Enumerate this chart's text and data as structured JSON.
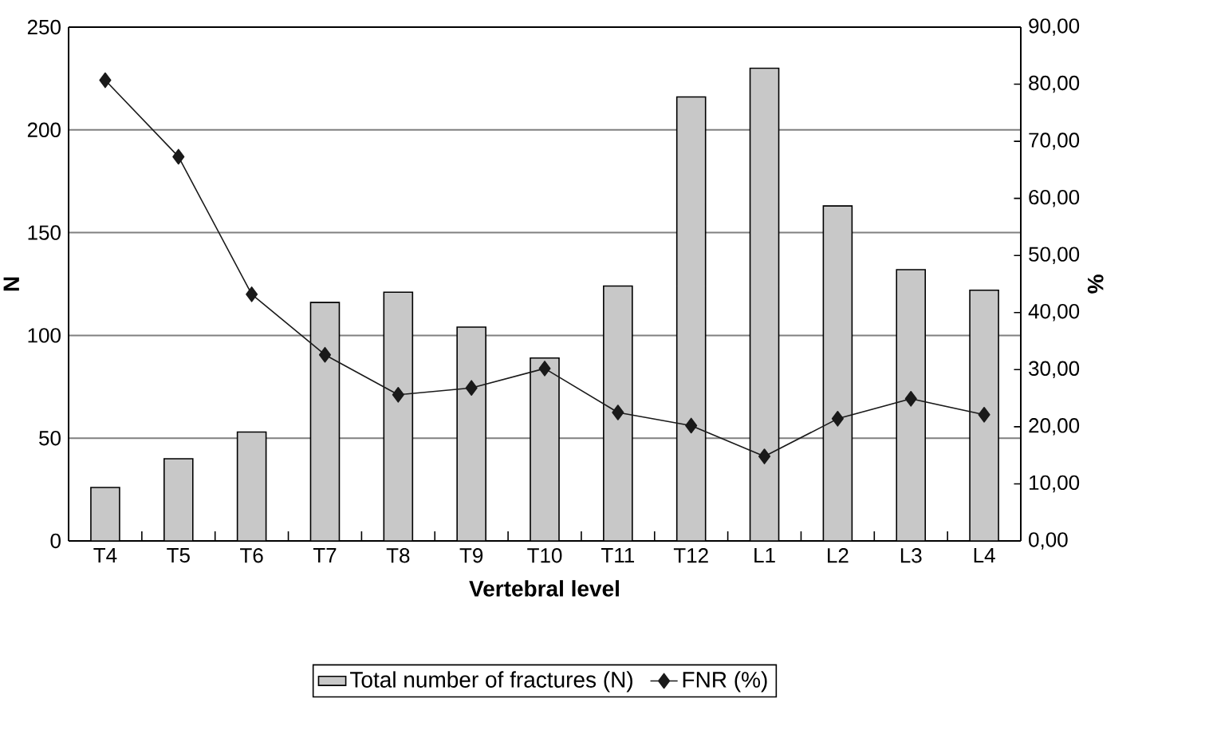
{
  "chart_data": {
    "type": "bar",
    "xlabel": "Vertebral level",
    "ylabel": "N",
    "y2label": "%",
    "categories": [
      "T4",
      "T5",
      "T6",
      "T7",
      "T8",
      "T9",
      "T10",
      "T11",
      "T12",
      "L1",
      "L2",
      "L3",
      "L4"
    ],
    "series": [
      {
        "name": "Total number of fractures (N)",
        "color": "#c8c8c8",
        "values": [
          26,
          40,
          53,
          116,
          121,
          104,
          89,
          124,
          216,
          230,
          163,
          132,
          122
        ]
      },
      {
        "name": "FNR (%)",
        "type": "line",
        "axis": "y2",
        "color": "#1a1a1a",
        "marker": "diamond",
        "values": [
          80.7,
          67.3,
          43.2,
          32.6,
          25.6,
          26.8,
          30.2,
          22.5,
          20.2,
          14.8,
          21.4,
          24.9,
          22.1
        ]
      }
    ],
    "ylim": [
      0,
      250
    ],
    "yticks": [
      0,
      50,
      100,
      150,
      200,
      250
    ],
    "y2lim": [
      0,
      90
    ],
    "y2ticks": [
      {
        "value": 0,
        "label": "0,00"
      },
      {
        "value": 10,
        "label": "10,00"
      },
      {
        "value": 20,
        "label": "20,00"
      },
      {
        "value": 30,
        "label": "30,00"
      },
      {
        "value": 40,
        "label": "40,00"
      },
      {
        "value": 50,
        "label": "50,00"
      },
      {
        "value": 60,
        "label": "60,00"
      },
      {
        "value": 70,
        "label": "70,00"
      },
      {
        "value": 80,
        "label": "80,00"
      },
      {
        "value": 90,
        "label": "90,00"
      }
    ],
    "grid": "y",
    "legend": "bottom"
  }
}
